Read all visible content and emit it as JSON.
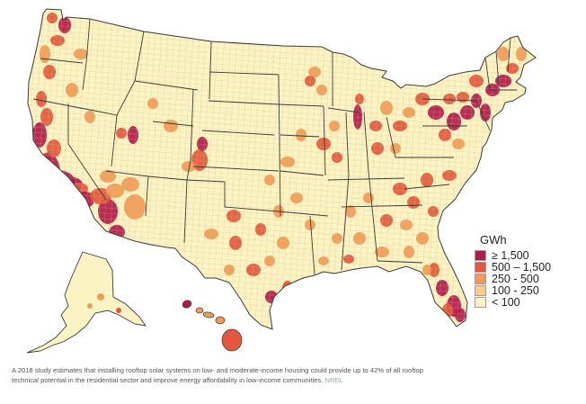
{
  "legend": {
    "title": "GWh",
    "items": [
      {
        "label": "≥ 1,500",
        "color": "#b5194b"
      },
      {
        "label": "500 – 1,500",
        "color": "#e4573a"
      },
      {
        "label": "250 - 500",
        "color": "#f29a54"
      },
      {
        "label": "100 - 250",
        "color": "#f8cd83"
      },
      {
        "label": "< 100",
        "color": "#fbf4c2"
      }
    ]
  },
  "caption": {
    "text": "A 2018 study estimates that installing rooftop solar systems on low- and moderate-income housing could provide up to 42% of all rooftop technical potential in the residential sector and improve energy affordability in low-income communities.",
    "credit": "NREL"
  },
  "colors": {
    "county_border": "#c9b48c",
    "state_border": "#3a3a3a",
    "base_fill": "#fbf4c2"
  }
}
